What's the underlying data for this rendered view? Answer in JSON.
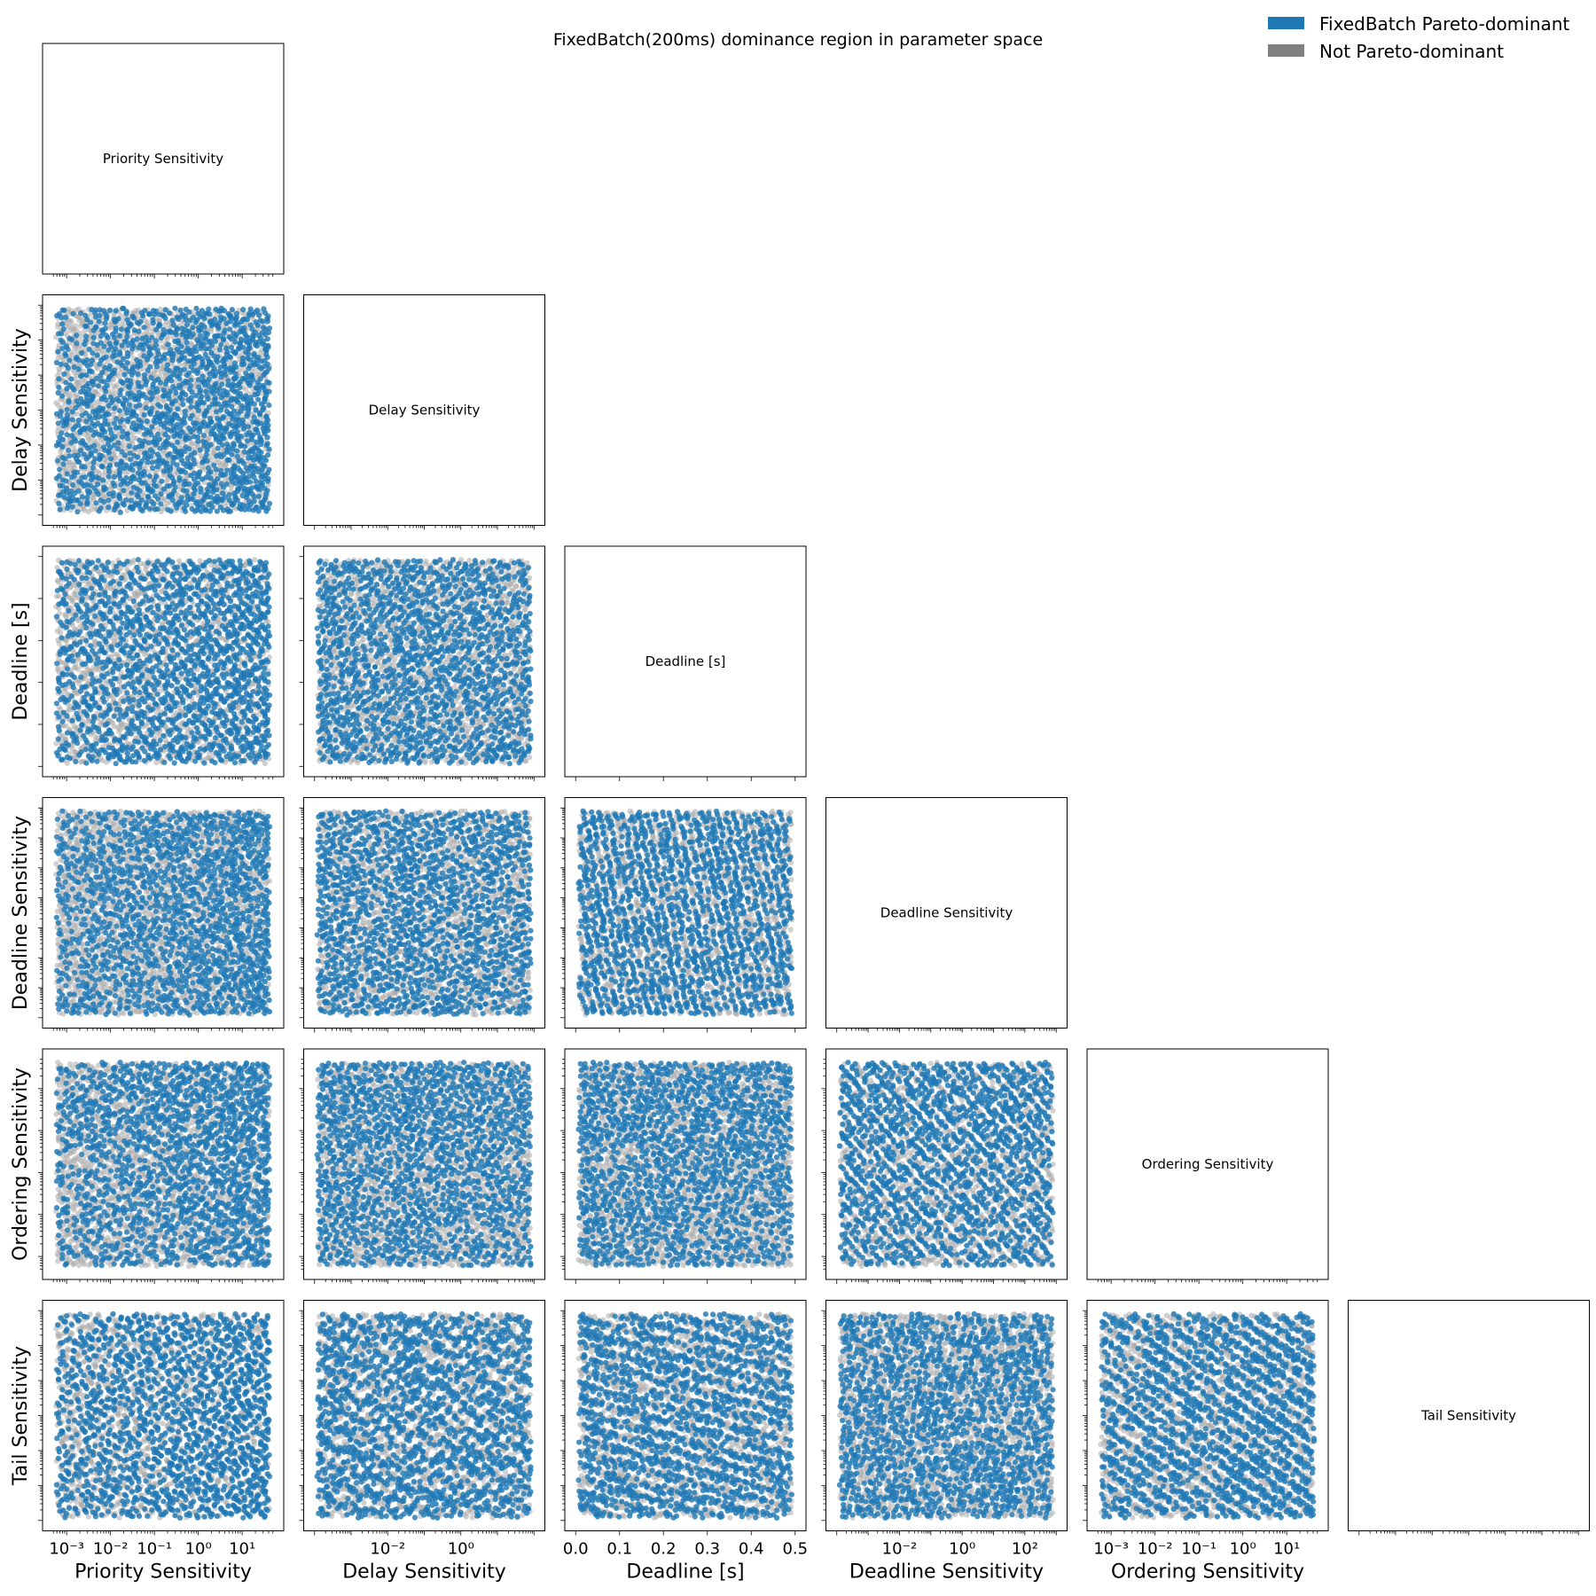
{
  "title": "FixedBatch(200ms) dominance region in parameter space",
  "legend": {
    "placement": "top-right",
    "items": [
      {
        "label": "FixedBatch Pareto-dominant",
        "color": "#1f77b4"
      },
      {
        "label": "Not Pareto-dominant",
        "color": "#808080"
      }
    ]
  },
  "colors": {
    "dominant": "#1f77b4",
    "not_dominant": "#a9a9a9"
  },
  "chart_data": {
    "type": "scatter",
    "layout": "pair-plot lower triangle with labeled diagonal",
    "n_samples": 3000,
    "parameters": [
      {
        "name": "Priority Sensitivity",
        "scale": "log",
        "range": [
          0.0005,
          50
        ],
        "tick_values": [
          0.001,
          0.01,
          0.1,
          1,
          10
        ],
        "tick_labels": [
          "10⁻³",
          "10⁻²",
          "10⁻¹",
          "10⁰",
          "10¹"
        ]
      },
      {
        "name": "Delay Sensitivity",
        "scale": "log",
        "range": [
          0.0001,
          100
        ],
        "tick_values": [
          0.01,
          1
        ],
        "tick_labels": [
          "10⁻²",
          "10⁰"
        ]
      },
      {
        "name": "Deadline [s]",
        "scale": "linear",
        "range": [
          0,
          0.5
        ],
        "tick_values": [
          0,
          0.1,
          0.2,
          0.3,
          0.4,
          0.5
        ],
        "tick_labels": [
          "0.0",
          "0.1",
          "0.2",
          "0.3",
          "0.4",
          "0.5"
        ]
      },
      {
        "name": "Deadline Sensitivity",
        "scale": "log",
        "range": [
          0.0001,
          1000
        ],
        "tick_values": [
          0.01,
          1,
          100
        ],
        "tick_labels": [
          "10⁻²",
          "10⁰",
          "10²"
        ]
      },
      {
        "name": "Ordering Sensitivity",
        "scale": "log",
        "range": [
          0.0005,
          50
        ],
        "tick_values": [
          0.001,
          0.01,
          0.1,
          1,
          10
        ],
        "tick_labels": [
          "10⁻³",
          "10⁻²",
          "10⁻¹",
          "10⁰",
          "10¹"
        ]
      },
      {
        "name": "Tail Sensitivity",
        "scale": "log",
        "range": [
          0.0001,
          100
        ],
        "tick_values": [],
        "tick_labels": []
      }
    ],
    "series": [
      {
        "name": "FixedBatch Pareto-dominant",
        "approx_share": 0.62
      },
      {
        "name": "Not Pareto-dominant",
        "approx_share": 0.38
      }
    ],
    "grid": false
  }
}
